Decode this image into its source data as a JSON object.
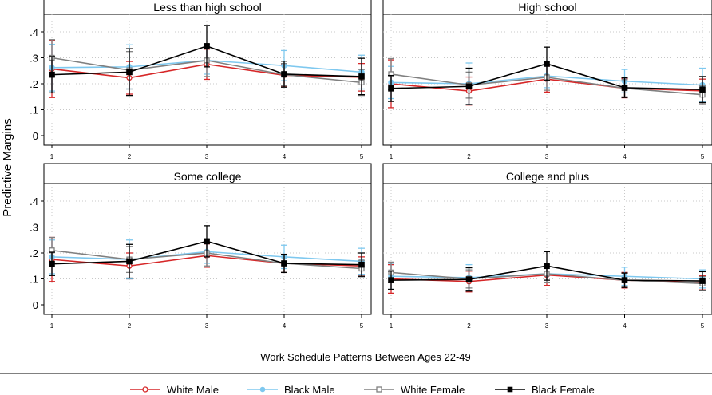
{
  "chart_data": {
    "type": "line",
    "ylabel": "Predictive Margins",
    "xlabel": "Work Schedule Patterns Between Ages 22-49",
    "x": [
      1,
      2,
      3,
      4,
      5
    ],
    "x_tick_labels": [
      "1",
      "2",
      "3",
      "4",
      "5"
    ],
    "y_tick_labels": [
      "0",
      ".1",
      ".2",
      ".3",
      ".4"
    ],
    "ylim": [
      0,
      0.45
    ],
    "grid": true,
    "legend_position": "bottom",
    "legend": [
      {
        "name": "White Male",
        "color": "#d62728",
        "marker": "circle-hollow"
      },
      {
        "name": "Black Male",
        "color": "#7ec8ef",
        "marker": "circle-filled"
      },
      {
        "name": "White Female",
        "color": "#808080",
        "marker": "square-hollow"
      },
      {
        "name": "Black Female",
        "color": "#000000",
        "marker": "square-filled"
      }
    ],
    "panels": [
      {
        "title": "Less than high school",
        "series": [
          {
            "name": "White Male",
            "values": [
              0.257,
              0.223,
              0.275,
              0.233,
              0.225
            ],
            "ci": [
              [
                0.147,
                0.367
              ],
              [
                0.16,
                0.286
              ],
              [
                0.217,
                0.333
              ],
              [
                0.19,
                0.276
              ],
              [
                0.172,
                0.278
              ]
            ]
          },
          {
            "name": "Black Male",
            "values": [
              0.262,
              0.265,
              0.29,
              0.27,
              0.245
            ],
            "ci": [
              [
                0.172,
                0.352
              ],
              [
                0.18,
                0.35
              ],
              [
                0.237,
                0.343
              ],
              [
                0.212,
                0.328
              ],
              [
                0.18,
                0.31
              ]
            ]
          },
          {
            "name": "White Female",
            "values": [
              0.3,
              0.252,
              0.29,
              0.235,
              0.205
            ],
            "ci": [
              [
                0.23,
                0.37
              ],
              [
                0.18,
                0.324
              ],
              [
                0.228,
                0.352
              ],
              [
                0.192,
                0.278
              ],
              [
                0.155,
                0.255
              ]
            ]
          },
          {
            "name": "Black Female",
            "values": [
              0.235,
              0.245,
              0.345,
              0.237,
              0.228
            ],
            "ci": [
              [
                0.165,
                0.305
              ],
              [
                0.155,
                0.335
              ],
              [
                0.265,
                0.425
              ],
              [
                0.187,
                0.287
              ],
              [
                0.158,
                0.298
              ]
            ]
          }
        ]
      },
      {
        "title": "High school",
        "series": [
          {
            "name": "White Male",
            "values": [
              0.2,
              0.172,
              0.218,
              0.183,
              0.173
            ],
            "ci": [
              [
                0.108,
                0.292
              ],
              [
                0.118,
                0.226
              ],
              [
                0.168,
                0.268
              ],
              [
                0.146,
                0.22
              ],
              [
                0.128,
                0.218
              ]
            ]
          },
          {
            "name": "Black Male",
            "values": [
              0.205,
              0.2,
              0.23,
              0.21,
              0.195
            ],
            "ci": [
              [
                0.143,
                0.267
              ],
              [
                0.12,
                0.28
              ],
              [
                0.185,
                0.275
              ],
              [
                0.165,
                0.255
              ],
              [
                0.13,
                0.26
              ]
            ]
          },
          {
            "name": "White Female",
            "values": [
              0.237,
              0.195,
              0.225,
              0.183,
              0.158
            ],
            "ci": [
              [
                0.177,
                0.297
              ],
              [
                0.145,
                0.245
              ],
              [
                0.175,
                0.275
              ],
              [
                0.15,
                0.216
              ],
              [
                0.123,
                0.193
              ]
            ]
          },
          {
            "name": "Black Female",
            "values": [
              0.182,
              0.19,
              0.277,
              0.185,
              0.178
            ],
            "ci": [
              [
                0.132,
                0.232
              ],
              [
                0.12,
                0.26
              ],
              [
                0.213,
                0.341
              ],
              [
                0.147,
                0.223
              ],
              [
                0.128,
                0.228
              ]
            ]
          }
        ]
      },
      {
        "title": "Some college",
        "series": [
          {
            "name": "White Male",
            "values": [
              0.175,
              0.15,
              0.19,
              0.16,
              0.15
            ],
            "ci": [
              [
                0.09,
                0.26
              ],
              [
                0.1,
                0.2
              ],
              [
                0.145,
                0.235
              ],
              [
                0.125,
                0.195
              ],
              [
                0.115,
                0.185
              ]
            ]
          },
          {
            "name": "Black Male",
            "values": [
              0.185,
              0.175,
              0.205,
              0.185,
              0.168
            ],
            "ci": [
              [
                0.12,
                0.25
              ],
              [
                0.1,
                0.25
              ],
              [
                0.16,
                0.25
              ],
              [
                0.14,
                0.23
              ],
              [
                0.118,
                0.218
              ]
            ]
          },
          {
            "name": "White Female",
            "values": [
              0.21,
              0.175,
              0.2,
              0.16,
              0.14
            ],
            "ci": [
              [
                0.16,
                0.26
              ],
              [
                0.125,
                0.225
              ],
              [
                0.15,
                0.25
              ],
              [
                0.125,
                0.195
              ],
              [
                0.108,
                0.172
              ]
            ]
          },
          {
            "name": "Black Female",
            "values": [
              0.158,
              0.168,
              0.245,
              0.16,
              0.155
            ],
            "ci": [
              [
                0.113,
                0.203
              ],
              [
                0.103,
                0.233
              ],
              [
                0.185,
                0.305
              ],
              [
                0.125,
                0.195
              ],
              [
                0.11,
                0.2
              ]
            ]
          }
        ]
      },
      {
        "title": "College and plus",
        "series": [
          {
            "name": "White Male",
            "values": [
              0.1,
              0.09,
              0.115,
              0.095,
              0.085
            ],
            "ci": [
              [
                0.045,
                0.155
              ],
              [
                0.05,
                0.13
              ],
              [
                0.075,
                0.155
              ],
              [
                0.065,
                0.125
              ],
              [
                0.058,
                0.112
              ]
            ]
          },
          {
            "name": "Black Male",
            "values": [
              0.11,
              0.105,
              0.12,
              0.11,
              0.1
            ],
            "ci": [
              [
                0.06,
                0.16
              ],
              [
                0.055,
                0.155
              ],
              [
                0.085,
                0.155
              ],
              [
                0.075,
                0.145
              ],
              [
                0.065,
                0.135
              ]
            ]
          },
          {
            "name": "White Female",
            "values": [
              0.125,
              0.1,
              0.12,
              0.095,
              0.082
            ],
            "ci": [
              [
                0.085,
                0.165
              ],
              [
                0.065,
                0.135
              ],
              [
                0.085,
                0.155
              ],
              [
                0.068,
                0.122
              ],
              [
                0.055,
                0.109
              ]
            ]
          },
          {
            "name": "Black Female",
            "values": [
              0.095,
              0.098,
              0.15,
              0.095,
              0.092
            ],
            "ci": [
              [
                0.06,
                0.13
              ],
              [
                0.053,
                0.143
              ],
              [
                0.095,
                0.205
              ],
              [
                0.067,
                0.123
              ],
              [
                0.056,
                0.128
              ]
            ]
          }
        ]
      }
    ]
  }
}
